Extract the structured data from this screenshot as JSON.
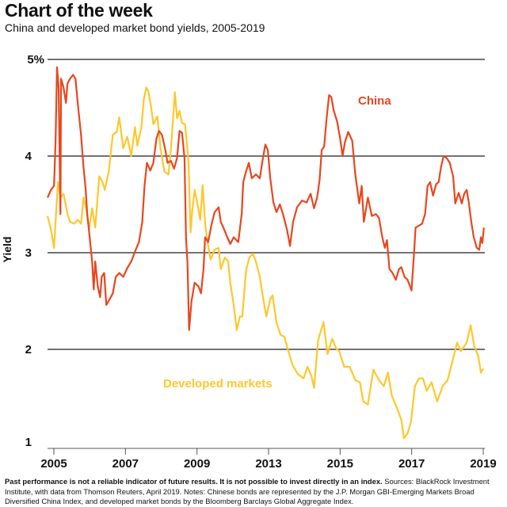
{
  "header": {
    "title": "Chart of the week",
    "subtitle": "China and developed market bond yields, 2005-2019"
  },
  "footnote": {
    "bold": "Past performance is not a reliable indicator of future results. It is not possible to invest directly in an index.",
    "text": " Sources: BlackRock Investment Institute, with data from Thomson Reuters, April 2019. Notes: Chinese bonds are represented by the J.P. Morgan GBI-Emerging Markets Broad Diversified China Index, and developed market bonds by the Bloomberg Barclays Global Aggregate Index."
  },
  "chart_data": {
    "type": "line",
    "title": "China and developed market bond yields, 2005-2019",
    "xlabel": "",
    "ylabel": "Yield",
    "xlim": [
      2004.79,
      2019.0
    ],
    "ylim": [
      1,
      5
    ],
    "x_tick_labels": [
      "2005",
      "2007",
      "2009",
      "2013",
      "2015",
      "2017",
      "2019"
    ],
    "y_ticks": [
      {
        "value": 5,
        "label": "5%"
      },
      {
        "value": 4,
        "label": "4"
      },
      {
        "value": 3,
        "label": "3"
      },
      {
        "value": 2,
        "label": "2"
      },
      {
        "value": 1,
        "label": "1"
      }
    ],
    "grid": true,
    "series": [
      {
        "name": "China",
        "color": "#E8461E",
        "x": [
          2004.79,
          2004.9,
          2005.0,
          2005.05,
          2005.1,
          2005.15,
          2005.21,
          2005.23,
          2005.31,
          2005.39,
          2005.44,
          2005.52,
          2005.62,
          2005.7,
          2005.77,
          2005.88,
          2005.96,
          2006.03,
          2006.08,
          2006.16,
          2006.24,
          2006.29,
          2006.34,
          2006.42,
          2006.5,
          2006.55,
          2006.63,
          2006.7,
          2006.81,
          2006.91,
          2007.01,
          2007.12,
          2007.25,
          2007.38,
          2007.51,
          2007.63,
          2007.76,
          2007.87,
          2007.94,
          2008.02,
          2008.13,
          2008.23,
          2008.33,
          2008.41,
          2008.51,
          2008.62,
          2008.69,
          2008.8,
          2008.9,
          2009.0,
          2009.08,
          2009.16,
          2009.24,
          2009.29,
          2009.34,
          2009.39,
          2009.47,
          2009.57,
          2009.7,
          2009.78,
          2009.86,
          2009.91,
          2010.01,
          2010.11,
          2010.22,
          2010.35,
          2010.42,
          2010.53,
          2010.63,
          2010.73,
          2010.84,
          2010.99,
          2011.1,
          2011.15,
          2011.23,
          2011.33,
          2011.43,
          2011.56,
          2011.69,
          2011.79,
          2011.87,
          2011.95,
          2012.03,
          2012.13,
          2012.23,
          2012.34,
          2012.44,
          2012.57,
          2012.67,
          2012.77,
          2012.9,
          2013.06,
          2013.21,
          2013.34,
          2013.45,
          2013.55,
          2013.63,
          2013.7,
          2013.78,
          2013.86,
          2013.94,
          2014.01,
          2014.09,
          2014.2,
          2014.3,
          2014.38,
          2014.45,
          2014.56,
          2014.69,
          2014.79,
          2014.92,
          2015.0,
          2015.07,
          2015.2,
          2015.33,
          2015.46,
          2015.56,
          2015.67,
          2015.75,
          2015.82,
          2015.9,
          2016.0,
          2016.11,
          2016.21,
          2016.29,
          2016.39,
          2016.49,
          2016.62,
          2016.7,
          2016.75,
          2016.86,
          2016.96,
          2017.06,
          2017.14,
          2017.22,
          2017.32,
          2017.42,
          2017.5,
          2017.58,
          2017.66,
          2017.76,
          2017.86,
          2017.97,
          2018.04,
          2018.15,
          2018.25,
          2018.33,
          2018.41,
          2018.48,
          2018.56,
          2018.64,
          2018.74,
          2018.82,
          2018.87,
          2018.92,
          2018.97
        ],
        "y": [
          3.57,
          3.65,
          3.69,
          4.14,
          4.92,
          4.71,
          3.4,
          4.8,
          4.71,
          4.55,
          4.75,
          4.8,
          4.84,
          4.8,
          4.55,
          4.22,
          3.89,
          3.65,
          3.4,
          3.16,
          2.91,
          2.62,
          2.91,
          2.66,
          2.54,
          2.75,
          2.79,
          2.46,
          2.52,
          2.58,
          2.75,
          2.79,
          2.75,
          2.84,
          2.91,
          3.01,
          3.11,
          3.32,
          3.69,
          3.93,
          3.85,
          3.93,
          4.18,
          4.26,
          4.22,
          4.06,
          3.93,
          3.95,
          3.87,
          3.98,
          4.26,
          4.24,
          3.98,
          3.16,
          2.89,
          2.2,
          2.5,
          2.69,
          2.65,
          2.58,
          2.83,
          3.16,
          3.11,
          3.28,
          3.42,
          3.47,
          3.32,
          3.24,
          3.16,
          3.09,
          3.16,
          3.11,
          3.4,
          3.73,
          3.83,
          3.93,
          3.77,
          3.81,
          3.77,
          3.98,
          4.12,
          4.06,
          3.77,
          3.52,
          3.42,
          3.5,
          3.4,
          3.24,
          3.07,
          3.32,
          3.47,
          3.54,
          3.52,
          3.61,
          3.46,
          3.57,
          3.75,
          4.06,
          4.1,
          4.39,
          4.63,
          4.61,
          4.47,
          4.36,
          4.18,
          4.0,
          4.14,
          4.25,
          4.16,
          3.81,
          3.51,
          3.69,
          3.32,
          3.57,
          3.38,
          3.4,
          3.36,
          3.16,
          3.05,
          3.13,
          2.83,
          2.79,
          2.72,
          2.83,
          2.85,
          2.75,
          2.72,
          2.61,
          3.0,
          3.26,
          3.28,
          3.3,
          3.4,
          3.69,
          3.73,
          3.59,
          3.71,
          3.73,
          3.89,
          4.0,
          3.98,
          3.93,
          3.79,
          3.51,
          3.62,
          3.51,
          3.61,
          3.65,
          3.52,
          3.32,
          3.16,
          3.05,
          3.03,
          3.16,
          3.1,
          3.26
        ]
      },
      {
        "name": "Developed markets",
        "color": "#FFC72C",
        "x": [
          2004.79,
          2004.9,
          2005.0,
          2005.08,
          2005.13,
          2005.21,
          2005.31,
          2005.44,
          2005.52,
          2005.65,
          2005.77,
          2005.88,
          2005.96,
          2006.06,
          2006.14,
          2006.24,
          2006.34,
          2006.47,
          2006.58,
          2006.65,
          2006.78,
          2006.91,
          2007.04,
          2007.12,
          2007.25,
          2007.38,
          2007.51,
          2007.63,
          2007.71,
          2007.84,
          2007.92,
          2008.0,
          2008.07,
          2008.15,
          2008.23,
          2008.36,
          2008.46,
          2008.59,
          2008.72,
          2008.8,
          2008.93,
          2009.0,
          2009.08,
          2009.16,
          2009.26,
          2009.37,
          2009.44,
          2009.49,
          2009.57,
          2009.68,
          2009.75,
          2009.83,
          2009.91,
          2010.01,
          2010.09,
          2010.22,
          2010.35,
          2010.42,
          2010.55,
          2010.66,
          2010.73,
          2010.84,
          2010.94,
          2011.04,
          2011.12,
          2011.2,
          2011.25,
          2011.35,
          2011.46,
          2011.56,
          2011.69,
          2011.79,
          2011.9,
          2012.03,
          2012.1,
          2012.23,
          2012.36,
          2012.49,
          2012.59,
          2012.75,
          2012.93,
          2013.11,
          2013.24,
          2013.37,
          2013.45,
          2013.58,
          2013.65,
          2013.76,
          2013.89,
          2014.04,
          2014.17,
          2014.27,
          2014.43,
          2014.61,
          2014.79,
          2014.94,
          2015.05,
          2015.2,
          2015.38,
          2015.56,
          2015.72,
          2015.85,
          2015.98,
          2016.16,
          2016.29,
          2016.37,
          2016.49,
          2016.6,
          2016.73,
          2016.86,
          2016.99,
          2017.11,
          2017.27,
          2017.45,
          2017.63,
          2017.79,
          2017.92,
          2018.1,
          2018.22,
          2018.41,
          2018.54,
          2018.66,
          2018.79,
          2018.87,
          2018.95
        ],
        "y": [
          3.38,
          3.24,
          3.05,
          3.48,
          3.73,
          3.57,
          3.61,
          3.4,
          3.32,
          3.3,
          3.34,
          3.3,
          3.57,
          3.44,
          3.24,
          3.46,
          3.26,
          3.79,
          3.73,
          3.65,
          3.84,
          4.22,
          4.25,
          4.4,
          4.08,
          4.2,
          4.0,
          4.3,
          4.11,
          4.3,
          4.59,
          4.71,
          4.67,
          4.52,
          4.33,
          4.41,
          4.08,
          3.84,
          3.81,
          4.08,
          4.66,
          4.39,
          4.47,
          4.34,
          4.33,
          3.95,
          3.21,
          3.43,
          3.65,
          3.47,
          3.34,
          3.7,
          3.3,
          3.07,
          2.93,
          3.03,
          3.05,
          2.83,
          2.95,
          2.91,
          2.69,
          2.46,
          2.2,
          2.34,
          2.34,
          2.66,
          2.83,
          2.95,
          2.99,
          2.91,
          2.75,
          2.54,
          2.34,
          2.52,
          2.56,
          2.28,
          2.15,
          2.13,
          2.01,
          1.84,
          1.74,
          1.7,
          1.82,
          1.72,
          1.6,
          2.09,
          2.17,
          2.28,
          1.95,
          2.11,
          2.01,
          1.98,
          1.82,
          1.82,
          1.68,
          1.66,
          1.46,
          1.43,
          1.79,
          1.68,
          1.62,
          1.76,
          1.52,
          1.38,
          1.27,
          1.08,
          1.13,
          1.25,
          1.62,
          1.7,
          1.7,
          1.57,
          1.66,
          1.46,
          1.62,
          1.68,
          1.84,
          2.07,
          1.98,
          2.07,
          2.25,
          2.03,
          1.93,
          1.76,
          1.8
        ]
      }
    ],
    "annotations": [
      "China",
      "Developed markets"
    ]
  }
}
